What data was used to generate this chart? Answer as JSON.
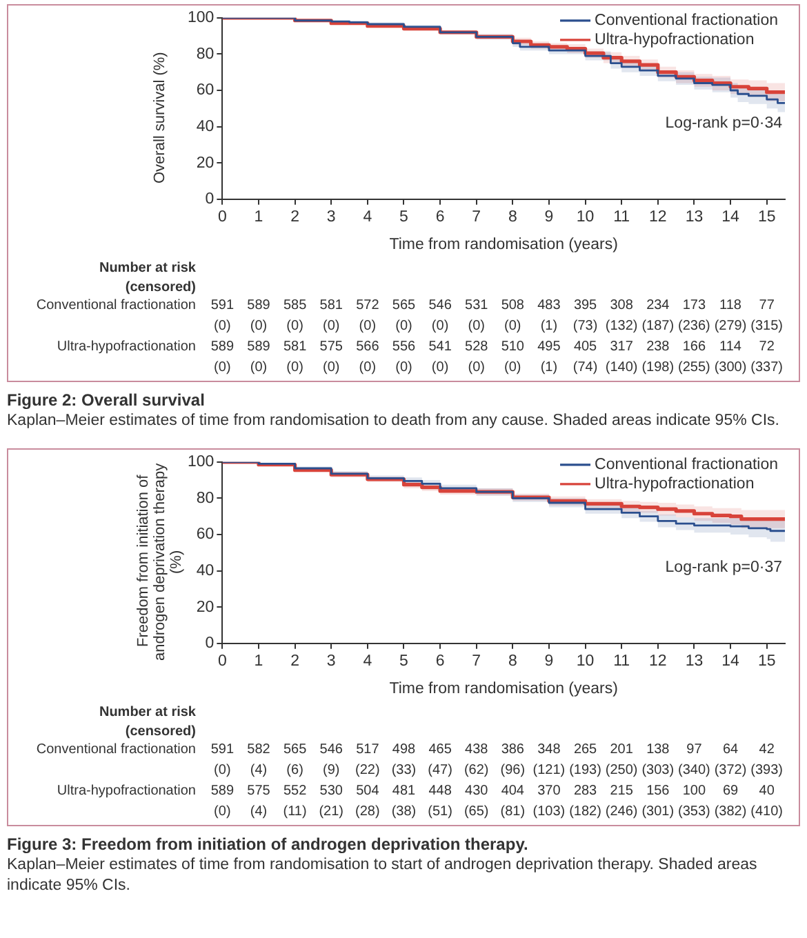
{
  "chart_data": [
    {
      "type": "step",
      "title": "Figure 2: Overall survival",
      "subtitle": "Kaplan–Meier estimates of time from randomisation to death from any cause. Shaded areas indicate 95% CIs.",
      "xlabel": "Time from randomisation (years)",
      "ylabel": "Overall survival (%)",
      "xlim": [
        0,
        15.5
      ],
      "xticks": [
        0,
        1,
        2,
        3,
        4,
        5,
        6,
        7,
        8,
        9,
        10,
        11,
        12,
        13,
        14,
        15
      ],
      "ylim": [
        0,
        100
      ],
      "yticks": [
        0,
        20,
        40,
        60,
        80,
        100
      ],
      "grid": false,
      "legend": "top right",
      "marker": "none",
      "series": [
        {
          "name": "Conventional fractionation",
          "color": "#2b4f8e",
          "x": [
            0,
            1,
            2,
            3,
            3.5,
            4,
            5,
            6,
            7,
            8,
            8.2,
            9,
            10,
            10.7,
            11,
            11.5,
            12,
            12.5,
            13,
            13.5,
            14,
            14.2,
            14.5,
            15,
            15.3,
            15.5
          ],
          "values": [
            100,
            100,
            98.5,
            98,
            97.5,
            96.5,
            95,
            92,
            89.5,
            86,
            84,
            82,
            79,
            75,
            73,
            71,
            68,
            66.5,
            64,
            63,
            60,
            58,
            57,
            55,
            53,
            53
          ],
          "lower": [
            100,
            100,
            98,
            97.5,
            96.5,
            95.5,
            94,
            91,
            88,
            84,
            82,
            80,
            76.5,
            72,
            70,
            68,
            65,
            63,
            60.5,
            59,
            56,
            53.5,
            52.5,
            50,
            48,
            48
          ],
          "upper": [
            100,
            100,
            99,
            98.5,
            98.5,
            97.5,
            96,
            93,
            91,
            88,
            86,
            84,
            81.5,
            78,
            76,
            74,
            71,
            70,
            67.5,
            67,
            64,
            62.5,
            61.5,
            60,
            58,
            58
          ]
        },
        {
          "name": "Ultra-hypofractionation",
          "color": "#d8433a",
          "x": [
            0,
            1,
            2,
            3,
            4,
            5,
            6,
            7,
            8,
            8.5,
            9,
            9.5,
            10,
            10.5,
            11,
            11.5,
            12,
            12.5,
            13,
            13.5,
            14,
            14.5,
            15,
            15.5
          ],
          "values": [
            100,
            100,
            98.5,
            97,
            95.5,
            94,
            92,
            89.5,
            87,
            85,
            84,
            83,
            80.5,
            78,
            76,
            74,
            70,
            67.5,
            65.5,
            64,
            62,
            61,
            59,
            58
          ],
          "lower": [
            100,
            100,
            98,
            96.5,
            94.5,
            93,
            91,
            88,
            85,
            83,
            82,
            80.5,
            78,
            75,
            73,
            71,
            67,
            64,
            62,
            60,
            58,
            56.5,
            54,
            53
          ],
          "upper": [
            100,
            100,
            99,
            97.5,
            96.5,
            95,
            93,
            91,
            89,
            87,
            86,
            85.5,
            83,
            81,
            79,
            77,
            73,
            71,
            69,
            68,
            66,
            65.5,
            64,
            63
          ]
        }
      ],
      "annotations": [
        "Log-rank p=0·34",
        "Number at risk (censored)",
        "Conventional fractionation",
        "591 589 585 581 572 565 546 531 508 483 395 308 234 173 118 77",
        "(0) (0) (0) (0) (0) (0) (0) (0) (0) (1) (73) (132) (187) (236) (279) (315)",
        "Ultra-hypofractionation",
        "589 589 581 575 566 556 541 528 510 495 405 317 238 166 114 72",
        "(0) (0) (0) (0) (0) (0) (0) (0) (0) (1) (74) (140) (198) (255) (300) (337)"
      ]
    },
    {
      "type": "step",
      "title": "Figure 3: Freedom from initiation of androgen deprivation therapy.",
      "subtitle": "Kaplan–Meier estimates of time from randomisation to start of androgen deprivation therapy. Shaded areas indicate 95% CIs.",
      "xlabel": "Time from randomisation (years)",
      "ylabel": "Freedom from initiation of androgen deprivation therapy (%)",
      "xlim": [
        0,
        15.5
      ],
      "xticks": [
        0,
        1,
        2,
        3,
        4,
        5,
        6,
        7,
        8,
        9,
        10,
        11,
        12,
        13,
        14,
        15
      ],
      "ylim": [
        0,
        100
      ],
      "yticks": [
        0,
        20,
        40,
        60,
        80,
        100
      ],
      "grid": false,
      "legend": "top right",
      "marker": "none",
      "series": [
        {
          "name": "Conventional fractionation",
          "color": "#2b4f8e",
          "x": [
            0,
            0.7,
            1,
            2,
            3,
            4,
            5,
            5.5,
            6,
            7,
            8,
            9,
            10,
            11,
            11.5,
            12,
            12.5,
            13,
            14,
            14.5,
            15,
            15.1,
            15.5
          ],
          "values": [
            100,
            100,
            99,
            96.5,
            93.5,
            91,
            89.5,
            88,
            85.5,
            83.5,
            80,
            77.5,
            74,
            72,
            70,
            67.5,
            66,
            65,
            64.5,
            63.5,
            63,
            62,
            62
          ],
          "lower": [
            100,
            100,
            98.5,
            95.5,
            92,
            89.5,
            87.5,
            86,
            83.5,
            81.5,
            78,
            75,
            71.5,
            69,
            67,
            64,
            62.5,
            61,
            60,
            58.5,
            57.5,
            56,
            56
          ],
          "upper": [
            100,
            100,
            99.5,
            97.5,
            95,
            92.5,
            91.5,
            90,
            87.5,
            85.5,
            82,
            80,
            76.5,
            75,
            73,
            71,
            69.5,
            69,
            69,
            68.5,
            68.5,
            68,
            68
          ]
        },
        {
          "name": "Ultra-hypofractionation",
          "color": "#d8433a",
          "x": [
            0,
            0.7,
            1,
            2,
            3,
            4,
            5,
            5.5,
            6,
            7,
            8,
            9,
            10,
            11,
            11.5,
            12,
            12.5,
            13,
            13.5,
            14,
            14.3,
            15.5
          ],
          "values": [
            100,
            100,
            98.5,
            95.5,
            93,
            90.5,
            87.5,
            86,
            84,
            83.5,
            80.5,
            78.5,
            77,
            75.5,
            75,
            74,
            73,
            71.5,
            70.5,
            70,
            68.5,
            68.5
          ],
          "lower": [
            100,
            100,
            98,
            94.5,
            91.5,
            89,
            85.5,
            84,
            82,
            81.5,
            78.5,
            76,
            74.5,
            72.5,
            72,
            70.5,
            69.5,
            67.5,
            66.5,
            65.5,
            63.5,
            63
          ],
          "upper": [
            100,
            100,
            99,
            96.5,
            94.5,
            92,
            89.5,
            88,
            86,
            85.5,
            82.5,
            81,
            79.5,
            78.5,
            78,
            77.5,
            76.5,
            75.5,
            74.5,
            74.5,
            73.5,
            74
          ]
        }
      ],
      "annotations": [
        "Log-rank p=0·37",
        "Number at risk (censored)",
        "Conventional fractionation",
        "591 582 565 546 517 498 465 438 386 348 265 201 138 97 64 42",
        "(0) (4) (6) (9) (22) (33) (47) (62) (96) (121) (193) (250) (303) (340) (372) (393)",
        "Ultra-hypofractionation",
        "589 575 552 530 504 481 448 430 404 370 283 215 156 100 69 40",
        "(0) (4) (11) (21) (28) (38) (51) (65) (81) (103) (182) (246) (301) (353) (382) (410)"
      ]
    }
  ]
}
